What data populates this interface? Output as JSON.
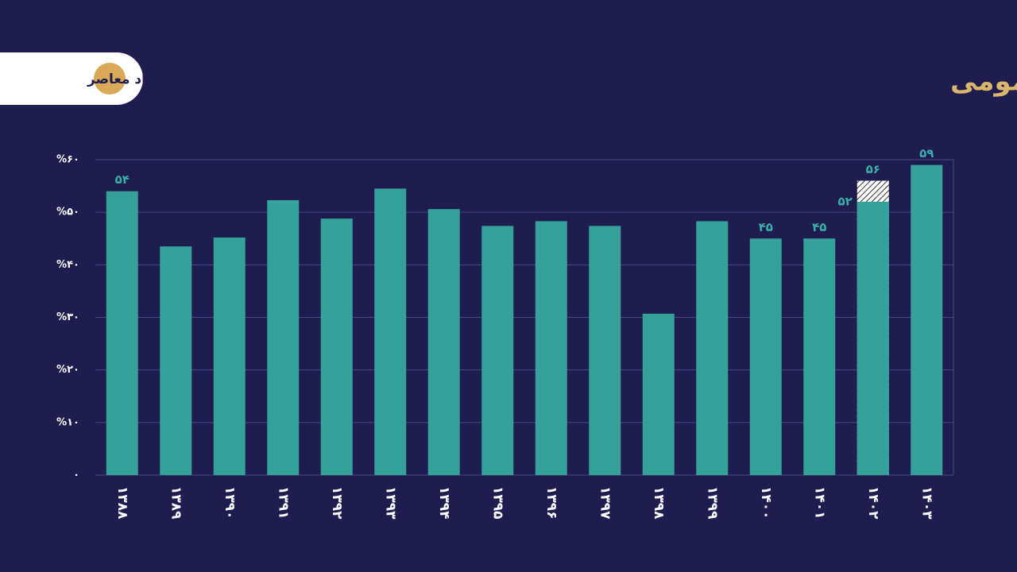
{
  "header": {
    "logo": "اقتصاد معاصر"
  },
  "chart_data": {
    "type": "bar",
    "title": "سهم عملکرد درآمدهای پایدار از منابع بودجه عمومی",
    "categories": [
      "۱۳۸۸",
      "۱۳۸۹",
      "۱۳۹۰",
      "۱۳۹۱",
      "۱۳۹۲",
      "۱۳۹۳",
      "۱۳۹۴",
      "۱۳۹۵",
      "۱۳۹۶",
      "۱۳۹۷",
      "۱۳۹۸",
      "۱۳۹۹",
      "۱۴۰۰",
      "۱۴۰۱",
      "۱۴۰۲",
      "۱۴۰۳"
    ],
    "series": [
      {
        "color": "#35a19b",
        "values": [
          54,
          43.5,
          45.2,
          52.3,
          48.8,
          54.5,
          50.6,
          47.4,
          48.3,
          47.4,
          30.7,
          48.3,
          45,
          45,
          52,
          59
        ],
        "value_labels": [
          "۵۴",
          null,
          null,
          null,
          null,
          null,
          null,
          null,
          null,
          null,
          null,
          null,
          "۴۵",
          "۴۵",
          "۵۲",
          "۵۹"
        ]
      },
      {
        "color": "#ffffff",
        "pattern": "hatch",
        "values": [
          null,
          null,
          null,
          null,
          null,
          null,
          null,
          null,
          null,
          null,
          null,
          null,
          null,
          null,
          56,
          null
        ],
        "value_labels": [
          null,
          null,
          null,
          null,
          null,
          null,
          null,
          null,
          null,
          null,
          null,
          null,
          null,
          null,
          "۵۶",
          null
        ]
      }
    ],
    "ylim": [
      0,
      60
    ],
    "yticks": [
      {
        "value": 0,
        "label": "۰"
      },
      {
        "value": 10,
        "label": "%۱۰"
      },
      {
        "value": 20,
        "label": "%۲۰"
      },
      {
        "value": 30,
        "label": "%۳۰"
      },
      {
        "value": 40,
        "label": "%۴۰"
      },
      {
        "value": 50,
        "label": "%۵۰"
      },
      {
        "value": 60,
        "label": "%۶۰"
      }
    ],
    "grid": true
  }
}
